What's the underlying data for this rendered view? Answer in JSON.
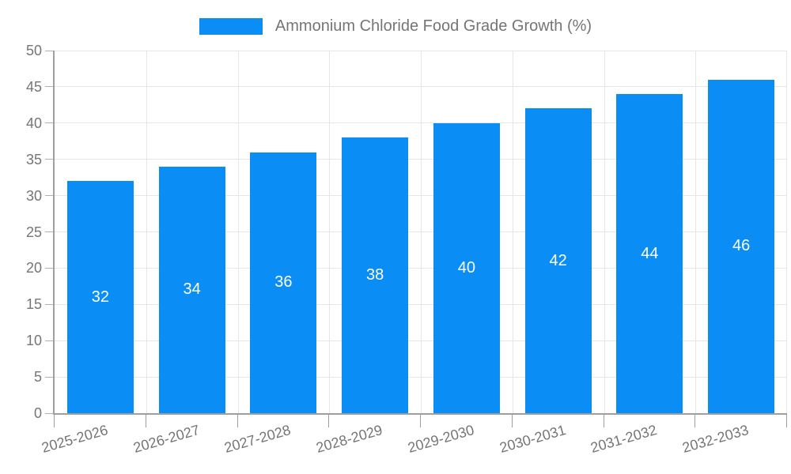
{
  "chart_data": {
    "type": "bar",
    "title": "Ammonium Chloride Food Grade Growth (%)",
    "categories": [
      "2025-2026",
      "2026-2027",
      "2027-2028",
      "2028-2029",
      "2029-2030",
      "2030-2031",
      "2031-2032",
      "2032-2033"
    ],
    "values": [
      32,
      34,
      36,
      38,
      40,
      42,
      44,
      46
    ],
    "xlabel": "",
    "ylabel": "",
    "ylim": [
      0,
      50
    ],
    "ytick_step": 5,
    "yticks": [
      0,
      5,
      10,
      15,
      20,
      25,
      30,
      35,
      40,
      45,
      50
    ],
    "grid": "both",
    "legend_position": "top-center",
    "value_labels": "inside-middle",
    "colors": {
      "bar": "#0a8df5",
      "value_label": "#ffffff",
      "axis": "#9e9e9e",
      "gridline": "#e6e6e6",
      "tick_label": "#757575",
      "legend_text": "#757575"
    },
    "x_label_rotation_deg": -16
  }
}
